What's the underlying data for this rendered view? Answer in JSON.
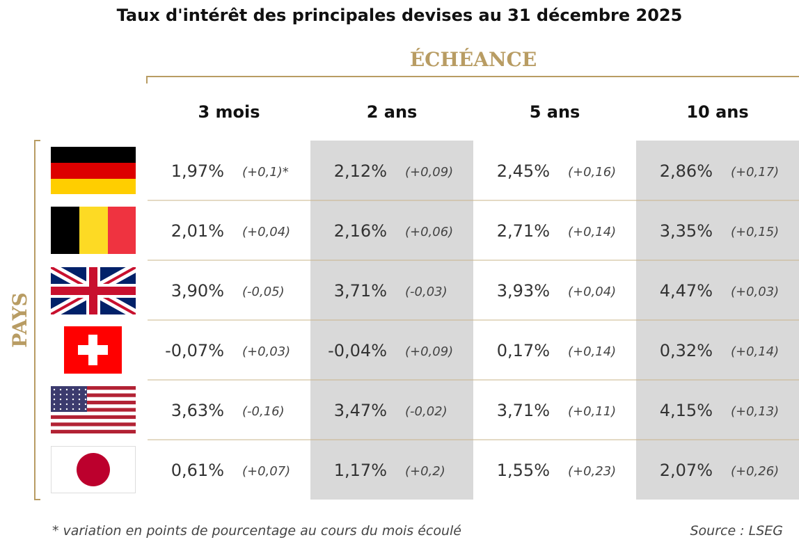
{
  "header": {
    "title": "Taux d'intérêt des principales devises au 31 décembre 2025",
    "column_group": "ÉCHÉANCE",
    "row_group": "PAYS"
  },
  "table": {
    "columns": [
      "3 mois",
      "2 ans",
      "5 ans",
      "10 ans"
    ],
    "rows": [
      {
        "cells": [
          {
            "rate": "1,97%",
            "change": "(+0,1)*"
          },
          {
            "rate": "2,12%",
            "change": "(+0,09)"
          },
          {
            "rate": "2,45%",
            "change": "(+0,16)"
          },
          {
            "rate": "2,86%",
            "change": "(+0,17)"
          }
        ]
      },
      {
        "cells": [
          {
            "rate": "2,01%",
            "change": "(+0,04)"
          },
          {
            "rate": "2,16%",
            "change": "(+0,06)"
          },
          {
            "rate": "2,71%",
            "change": "(+0,14)"
          },
          {
            "rate": "3,35%",
            "change": "(+0,15)"
          }
        ]
      },
      {
        "cells": [
          {
            "rate": "3,90%",
            "change": "(-0,05)"
          },
          {
            "rate": "3,71%",
            "change": "(-0,03)"
          },
          {
            "rate": "3,93%",
            "change": "(+0,04)"
          },
          {
            "rate": "4,47%",
            "change": "(+0,03)"
          }
        ]
      },
      {
        "cells": [
          {
            "rate": "-0,07%",
            "change": "(+0,03)"
          },
          {
            "rate": "-0,04%",
            "change": "(+0,09)"
          },
          {
            "rate": "0,17%",
            "change": "(+0,14)"
          },
          {
            "rate": "0,32%",
            "change": "(+0,14)"
          }
        ]
      },
      {
        "cells": [
          {
            "rate": "3,63%",
            "change": "(-0,16)"
          },
          {
            "rate": "3,47%",
            "change": "(-0,02)"
          },
          {
            "rate": "3,71%",
            "change": "(+0,11)"
          },
          {
            "rate": "4,15%",
            "change": "(+0,13)"
          }
        ]
      },
      {
        "cells": [
          {
            "rate": "0,61%",
            "change": "(+0,07)"
          },
          {
            "rate": "1,17%",
            "change": "(+0,2)"
          },
          {
            "rate": "1,55%",
            "change": "(+0,23)"
          },
          {
            "rate": "2,07%",
            "change": "(+0,26)"
          }
        ]
      }
    ]
  },
  "footer": {
    "note": "* variation en points de pourcentage au cours du mois écoulé",
    "source": "Source : LSEG"
  }
}
